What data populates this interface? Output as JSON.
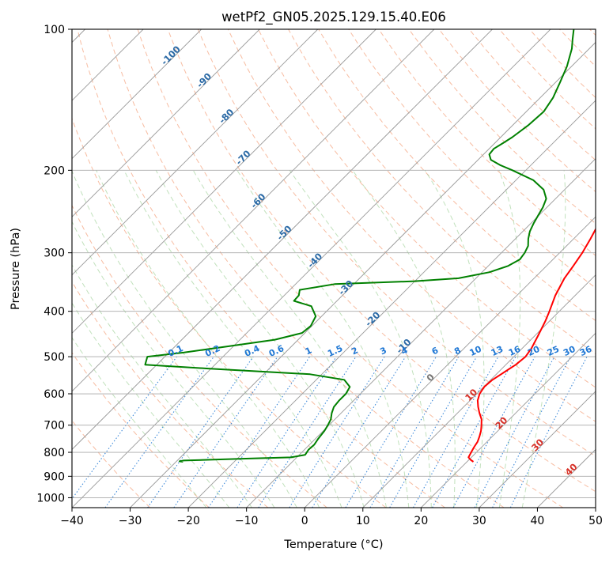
{
  "chart_data": {
    "type": "line",
    "subtype": "skew-t log-p diagram",
    "title": "wetPf2_GN05.2025.129.15.40.E06",
    "xlabel": "Temperature (°C)",
    "ylabel": "Pressure (hPa)",
    "xlim": [
      -40,
      50
    ],
    "ylim": [
      1050,
      100
    ],
    "yscale": "log",
    "xticks": [
      -40,
      -30,
      -20,
      -10,
      0,
      10,
      20,
      30,
      40,
      50
    ],
    "yticks": [
      100,
      200,
      300,
      400,
      500,
      600,
      700,
      800,
      900,
      1000
    ],
    "grid": true,
    "isotherm_labels": {
      "blue": [
        "-100",
        "-90",
        "-80",
        "-70",
        "-60",
        "-50",
        "-40",
        "-30",
        "-20",
        "-10"
      ],
      "grey": [
        "0"
      ],
      "red": [
        "10",
        "20",
        "30",
        "40"
      ]
    },
    "mixing_ratio_labels": [
      "0.1",
      "0.2",
      "0.4",
      "0.6",
      "1",
      "1.5",
      "2",
      "3",
      "4",
      "6",
      "8",
      "10",
      "13",
      "16",
      "20",
      "25",
      "30",
      "36"
    ],
    "series": [
      {
        "name": "",
        "color": "#ff0000",
        "points": [
          [
            838,
            21.1
          ],
          [
            830,
            20.3
          ],
          [
            820,
            19.5
          ],
          [
            800,
            19.1
          ],
          [
            780,
            18.7
          ],
          [
            760,
            18.4
          ],
          [
            740,
            17.8
          ],
          [
            720,
            17.1
          ],
          [
            700,
            16.2
          ],
          [
            680,
            15.2
          ],
          [
            660,
            13.8
          ],
          [
            640,
            12.5
          ],
          [
            620,
            11.3
          ],
          [
            600,
            10.5
          ],
          [
            580,
            10.1
          ],
          [
            560,
            10.3
          ],
          [
            540,
            11.0
          ],
          [
            520,
            11.7
          ],
          [
            500,
            12.0
          ],
          [
            480,
            11.6
          ],
          [
            450,
            10.5
          ],
          [
            420,
            9.3
          ],
          [
            400,
            8.3
          ],
          [
            370,
            6.6
          ],
          [
            340,
            5.2
          ],
          [
            320,
            4.6
          ],
          [
            300,
            3.9
          ],
          [
            280,
            2.9
          ],
          [
            260,
            1.7
          ],
          [
            240,
            0.4
          ],
          [
            220,
            -0.3
          ],
          [
            210,
            -0.2
          ],
          [
            200,
            0.8
          ],
          [
            190,
            3.1
          ],
          [
            180,
            4.5
          ],
          [
            170,
            4.6
          ],
          [
            160,
            4.7
          ],
          [
            150,
            5.0
          ],
          [
            140,
            5.6
          ],
          [
            130,
            6.4
          ],
          [
            120,
            7.4
          ],
          [
            110,
            9.0
          ],
          [
            105,
            10.2
          ],
          [
            100,
            11.1
          ]
        ]
      },
      {
        "name": "",
        "color": "#008000",
        "points": [
          [
            838,
            -28.8
          ],
          [
            836,
            -29.5
          ],
          [
            833,
            -28.9
          ],
          [
            825,
            -18.0
          ],
          [
            820,
            -11.0
          ],
          [
            810,
            -9.0
          ],
          [
            790,
            -9.3
          ],
          [
            770,
            -9.2
          ],
          [
            750,
            -9.5
          ],
          [
            720,
            -9.8
          ],
          [
            700,
            -10.2
          ],
          [
            680,
            -10.7
          ],
          [
            660,
            -11.6
          ],
          [
            640,
            -12.3
          ],
          [
            620,
            -12.5
          ],
          [
            600,
            -12.5
          ],
          [
            580,
            -13.0
          ],
          [
            560,
            -15.2
          ],
          [
            545,
            -22.0
          ],
          [
            530,
            -40.5
          ],
          [
            520,
            -52.0
          ],
          [
            500,
            -53.0
          ],
          [
            490,
            -47.5
          ],
          [
            475,
            -40.8
          ],
          [
            460,
            -34.0
          ],
          [
            445,
            -30.5
          ],
          [
            430,
            -30.2
          ],
          [
            410,
            -31.0
          ],
          [
            390,
            -33.5
          ],
          [
            380,
            -37.4
          ],
          [
            370,
            -37.5
          ],
          [
            360,
            -38.3
          ],
          [
            350,
            -33.3
          ],
          [
            345,
            -20.0
          ],
          [
            340,
            -13.0
          ],
          [
            330,
            -8.7
          ],
          [
            320,
            -6.6
          ],
          [
            310,
            -5.7
          ],
          [
            300,
            -6.0
          ],
          [
            290,
            -6.6
          ],
          [
            280,
            -7.8
          ],
          [
            270,
            -8.8
          ],
          [
            260,
            -9.5
          ],
          [
            250,
            -10.1
          ],
          [
            240,
            -10.7
          ],
          [
            230,
            -11.6
          ],
          [
            220,
            -13.6
          ],
          [
            210,
            -17.0
          ],
          [
            200,
            -22.3
          ],
          [
            195,
            -25.3
          ],
          [
            190,
            -27.8
          ],
          [
            185,
            -29.0
          ],
          [
            180,
            -29.2
          ],
          [
            175,
            -28.6
          ],
          [
            170,
            -28.0
          ],
          [
            160,
            -27.3
          ],
          [
            150,
            -27.0
          ],
          [
            140,
            -27.8
          ],
          [
            130,
            -29.2
          ],
          [
            120,
            -30.8
          ],
          [
            110,
            -33.0
          ],
          [
            105,
            -34.5
          ],
          [
            100,
            -36.0
          ]
        ]
      }
    ]
  }
}
